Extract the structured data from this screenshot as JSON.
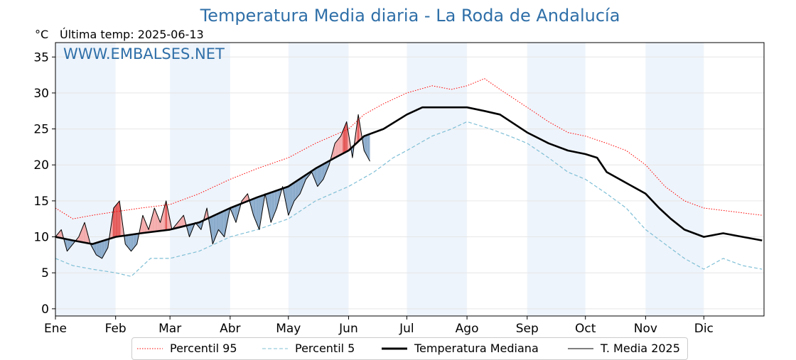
{
  "title": "Temperatura Media diaria - La Roda de Andalucía",
  "unit_label": "°C",
  "last_temp_label": "Última temp: 2025-06-13",
  "watermark": "WWW.EMBALSES.NET",
  "colors": {
    "title": "#2f6fa8",
    "p95": "#ff0000",
    "p5": "#7fbfd6",
    "median": "#000000",
    "media2025": "#000000",
    "above_fill": "#f4a9a9",
    "above_strong": "#e45656",
    "below_fill": "#89aacb",
    "below_strong": "#4f7fae",
    "month_band": "#eef4fb"
  },
  "legend": {
    "p95": "Percentil 95",
    "p5": "Percentil 5",
    "median": "Temperatura Mediana",
    "media2025": "T. Media 2025"
  },
  "chart_data": {
    "type": "line",
    "title": "Temperatura Media diaria - La Roda de Andalucía",
    "ylabel": "°C",
    "xlabel": "",
    "ylim": [
      -1,
      37
    ],
    "xlim": [
      1,
      366
    ],
    "yticks": [
      0,
      5,
      10,
      15,
      20,
      25,
      30,
      35
    ],
    "month_ticks": [
      {
        "label": "Ene",
        "day": 1
      },
      {
        "label": "Feb",
        "day": 32
      },
      {
        "label": "Mar",
        "day": 60
      },
      {
        "label": "Abr",
        "day": 91
      },
      {
        "label": "May",
        "day": 121
      },
      {
        "label": "Jun",
        "day": 152
      },
      {
        "label": "Jul",
        "day": 182
      },
      {
        "label": "Ago",
        "day": 213
      },
      {
        "label": "Sep",
        "day": 244
      },
      {
        "label": "Oct",
        "day": 274
      },
      {
        "label": "Nov",
        "day": 305
      },
      {
        "label": "Dic",
        "day": 335
      }
    ],
    "grid": true,
    "legend_position": "bottom",
    "series": [
      {
        "name": "Percentil 95",
        "style": "dotted",
        "x": [
          1,
          10,
          20,
          32,
          45,
          60,
          75,
          91,
          105,
          121,
          135,
          152,
          160,
          170,
          182,
          195,
          205,
          213,
          222,
          230,
          244,
          255,
          265,
          274,
          285,
          295,
          305,
          315,
          325,
          335,
          350,
          365
        ],
        "values": [
          14,
          12.5,
          13,
          13.5,
          14,
          14.5,
          16,
          18,
          19.5,
          21,
          23,
          25,
          27,
          28.5,
          30,
          31,
          30.5,
          31,
          32,
          30.5,
          28,
          26,
          24.5,
          24,
          23,
          22,
          20,
          17,
          15,
          14,
          13.5,
          13
        ]
      },
      {
        "name": "Percentil 5",
        "style": "dashed",
        "x": [
          1,
          10,
          20,
          32,
          40,
          50,
          60,
          75,
          91,
          105,
          121,
          135,
          152,
          165,
          175,
          182,
          195,
          205,
          213,
          225,
          235,
          244,
          255,
          265,
          274,
          285,
          295,
          305,
          315,
          325,
          335,
          345,
          355,
          365
        ],
        "values": [
          7,
          6,
          5.5,
          5,
          4.5,
          7,
          7,
          8,
          10,
          11,
          12.5,
          15,
          17,
          19,
          21,
          22,
          24,
          25,
          26,
          25,
          24,
          23,
          21,
          19,
          18,
          16,
          14,
          11,
          9,
          7,
          5.5,
          7,
          6,
          5.5
        ]
      },
      {
        "name": "Temperatura Mediana",
        "style": "solid-thick",
        "x": [
          1,
          10,
          20,
          32,
          45,
          60,
          75,
          91,
          105,
          121,
          135,
          145,
          152,
          160,
          170,
          182,
          190,
          200,
          213,
          222,
          230,
          244,
          255,
          265,
          274,
          280,
          285,
          295,
          305,
          312,
          318,
          325,
          335,
          345,
          355,
          365
        ],
        "values": [
          10,
          9.5,
          9,
          10,
          10.5,
          11,
          12,
          14,
          15.5,
          17,
          19.5,
          21,
          22,
          24,
          25,
          27,
          28,
          28,
          28,
          27.5,
          27,
          24.5,
          23,
          22,
          21.5,
          21,
          19,
          17.5,
          16,
          14,
          12.5,
          11,
          10,
          10.5,
          10,
          9.5
        ]
      },
      {
        "name": "T. Media 2025",
        "style": "solid-thin",
        "x": [
          1,
          4,
          7,
          10,
          13,
          16,
          19,
          22,
          25,
          28,
          31,
          34,
          37,
          40,
          43,
          46,
          49,
          52,
          55,
          58,
          61,
          64,
          67,
          70,
          73,
          76,
          79,
          82,
          85,
          88,
          91,
          94,
          97,
          100,
          103,
          106,
          109,
          112,
          115,
          118,
          121,
          124,
          127,
          130,
          133,
          136,
          139,
          142,
          145,
          148,
          151,
          154,
          157,
          160,
          163
        ],
        "values": [
          10,
          11,
          8,
          9,
          10,
          12,
          9,
          7.5,
          7,
          8.5,
          14,
          15,
          9,
          8,
          9,
          13,
          11,
          14,
          12,
          15,
          11,
          12,
          13,
          10,
          12,
          11,
          14,
          9,
          11,
          10,
          14,
          12,
          15,
          16,
          13,
          11,
          16,
          12,
          14,
          17,
          13,
          15,
          16,
          18,
          19,
          17,
          18,
          20,
          23,
          24,
          26,
          21,
          27,
          22,
          20.5
        ]
      }
    ]
  }
}
